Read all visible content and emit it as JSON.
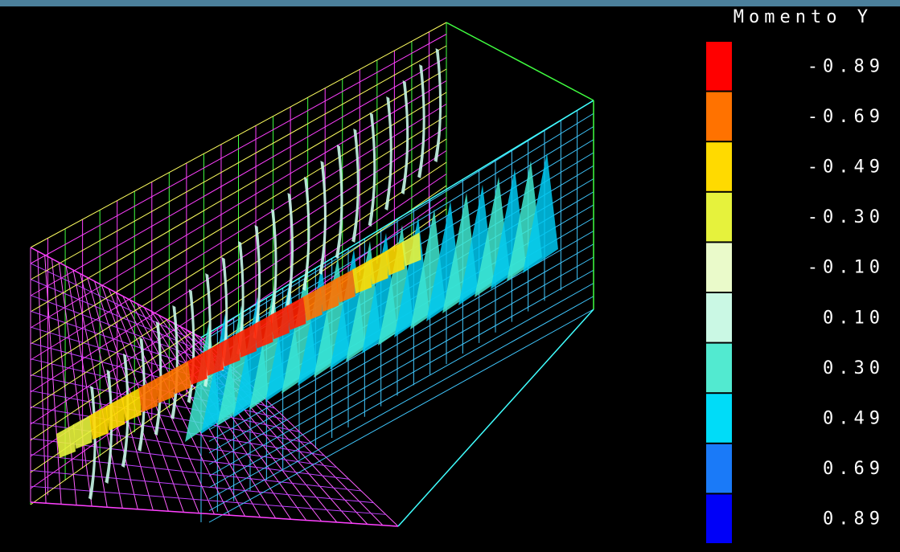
{
  "legend": {
    "title": "Momento Y",
    "entries": [
      {
        "label": "-0.89",
        "color": "#ff0000"
      },
      {
        "label": "-0.69",
        "color": "#ff7200"
      },
      {
        "label": "-0.49",
        "color": "#ffda00"
      },
      {
        "label": "-0.30",
        "color": "#e6f23c"
      },
      {
        "label": "-0.10",
        "color": "#eafaca"
      },
      {
        "label": "0.10",
        "color": "#caf8e4"
      },
      {
        "label": "0.30",
        "color": "#52ead0"
      },
      {
        "label": "0.49",
        "color": "#00dcf8"
      },
      {
        "label": "0.69",
        "color": "#1a7af8"
      },
      {
        "label": "0.89",
        "color": "#0000f8"
      }
    ]
  }
}
